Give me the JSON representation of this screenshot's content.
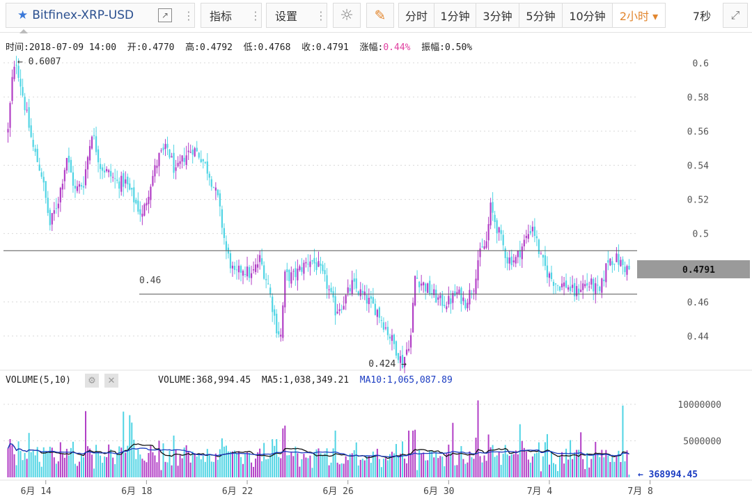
{
  "toolbar": {
    "symbol": "Bitfinex-XRP-USD",
    "star_icon": "★",
    "popout_icon": "↗",
    "dots": "⋮",
    "indicators_label": "指标",
    "settings_label": "设置",
    "theme_icon": "☼",
    "draw_icon": "✎",
    "periods": [
      "分时",
      "1分钟",
      "3分钟",
      "5分钟",
      "10分钟",
      "2小时 ▾"
    ],
    "active_period": "2小时",
    "countdown": "7秒",
    "fullscreen_icon": "⤢"
  },
  "info_bar": {
    "time": "时间:2018-07-09 14:00",
    "open": "开:0.4770",
    "high": "高:0.4792",
    "low": "低:0.4768",
    "close": "收:0.4791",
    "change_label": "涨幅:",
    "change_value": "0.44%",
    "amplitude": "振幅:0.50%"
  },
  "volume_bar": {
    "label": "VOLUME(5,10)",
    "volume": "VOLUME:368,994.45",
    "ma5": "MA5:1,038,349.21",
    "ma10": "MA10:1,065,087.89",
    "settings_icon": "⚙",
    "close_icon": "✕"
  },
  "chart_data": [
    {
      "type": "candlestick",
      "series_colors": {
        "up": "#b23fc6",
        "down": "#4fd4e4"
      },
      "y_ticks": [
        0.6,
        0.58,
        0.56,
        0.54,
        0.52,
        0.5,
        0.46,
        0.44
      ],
      "ylim": [
        0.42,
        0.605
      ],
      "x_ticks": [
        "6月 14",
        "6月 18",
        "6月 22",
        "6月 26",
        "6月 30",
        "7月 4",
        "7月 8"
      ],
      "x_tick_day_offsets": [
        2,
        6,
        10,
        14,
        18,
        22,
        26
      ],
      "x_start": "2018-06-12",
      "x_end": "2018-07-09 14:00",
      "bar_interval": "2小时",
      "high_marker": "← 0.6007",
      "low_marker": "0.424 →",
      "horizontal_lines": [
        {
          "value": 0.49,
          "label": ""
        },
        {
          "value": 0.4645,
          "label": "0.46"
        }
      ],
      "last_price_label": "0.4791",
      "last_price": 0.4791,
      "price_keypoints": [
        [
          0,
          0.56
        ],
        [
          2,
          0.59
        ],
        [
          4,
          0.6007
        ],
        [
          8,
          0.575
        ],
        [
          12,
          0.55
        ],
        [
          16,
          0.535
        ],
        [
          20,
          0.505
        ],
        [
          24,
          0.52
        ],
        [
          28,
          0.545
        ],
        [
          32,
          0.525
        ],
        [
          36,
          0.53
        ],
        [
          40,
          0.56
        ],
        [
          44,
          0.54
        ],
        [
          48,
          0.535
        ],
        [
          52,
          0.53
        ],
        [
          56,
          0.53
        ],
        [
          60,
          0.52
        ],
        [
          64,
          0.51
        ],
        [
          68,
          0.53
        ],
        [
          72,
          0.545
        ],
        [
          76,
          0.55
        ],
        [
          80,
          0.535
        ],
        [
          84,
          0.545
        ],
        [
          88,
          0.55
        ],
        [
          92,
          0.545
        ],
        [
          96,
          0.535
        ],
        [
          100,
          0.52
        ],
        [
          104,
          0.49
        ],
        [
          108,
          0.475
        ],
        [
          112,
          0.48
        ],
        [
          116,
          0.475
        ],
        [
          120,
          0.485
        ],
        [
          124,
          0.47
        ],
        [
          128,
          0.445
        ],
        [
          130,
          0.44
        ],
        [
          132,
          0.475
        ],
        [
          136,
          0.475
        ],
        [
          140,
          0.48
        ],
        [
          144,
          0.485
        ],
        [
          148,
          0.48
        ],
        [
          152,
          0.47
        ],
        [
          156,
          0.455
        ],
        [
          160,
          0.46
        ],
        [
          164,
          0.47
        ],
        [
          168,
          0.465
        ],
        [
          172,
          0.46
        ],
        [
          176,
          0.455
        ],
        [
          180,
          0.445
        ],
        [
          184,
          0.435
        ],
        [
          188,
          0.424
        ],
        [
          192,
          0.44
        ],
        [
          194,
          0.475
        ],
        [
          198,
          0.47
        ],
        [
          202,
          0.465
        ],
        [
          206,
          0.46
        ],
        [
          210,
          0.46
        ],
        [
          214,
          0.465
        ],
        [
          218,
          0.46
        ],
        [
          222,
          0.47
        ],
        [
          224,
          0.485
        ],
        [
          228,
          0.495
        ],
        [
          230,
          0.515
        ],
        [
          234,
          0.5
        ],
        [
          238,
          0.485
        ],
        [
          242,
          0.485
        ],
        [
          246,
          0.495
        ],
        [
          250,
          0.505
        ],
        [
          254,
          0.485
        ],
        [
          258,
          0.475
        ],
        [
          262,
          0.47
        ],
        [
          266,
          0.47
        ],
        [
          270,
          0.465
        ],
        [
          274,
          0.47
        ],
        [
          278,
          0.47
        ],
        [
          282,
          0.465
        ],
        [
          286,
          0.485
        ],
        [
          290,
          0.485
        ],
        [
          294,
          0.48
        ],
        [
          296,
          0.4791
        ]
      ]
    },
    {
      "type": "bar",
      "name": "VOLUME",
      "y_ticks": [
        10000000,
        5000000
      ],
      "ylim": [
        0,
        12000000
      ],
      "series": [
        {
          "name": "VOLUME",
          "color_up": "#b23fc6",
          "color_down": "#4fd4e4"
        },
        {
          "name": "MA5",
          "color": "#111111"
        },
        {
          "name": "MA10",
          "color": "#1b3cc2"
        }
      ],
      "last_volume_label": "← 368994.45",
      "last_volume": 368994.45
    }
  ]
}
